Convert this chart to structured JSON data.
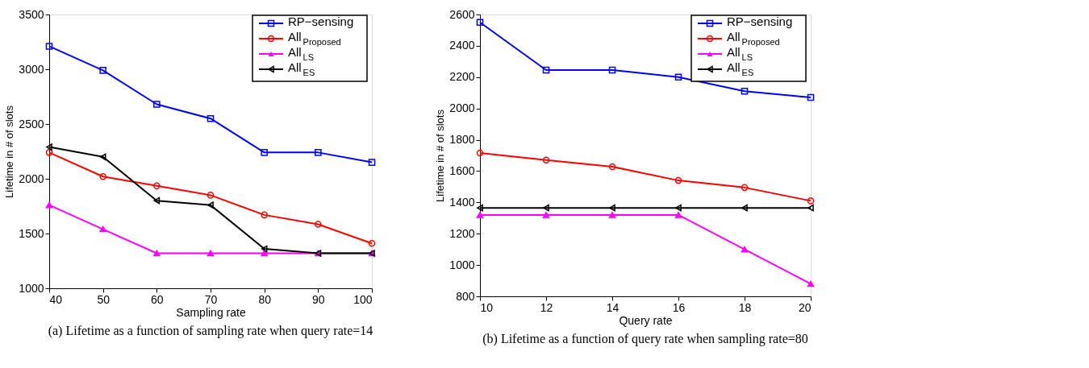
{
  "chart_data": [
    {
      "type": "line",
      "title": "(a) Lifetime as a function of sampling rate when query rate=14",
      "xlabel": "Sampling rate",
      "ylabel": "Lifetime in # of slots",
      "x": [
        40,
        50,
        60,
        70,
        80,
        90,
        100
      ],
      "xlim": [
        40,
        100
      ],
      "xticks": [
        40,
        50,
        60,
        70,
        80,
        90,
        100
      ],
      "ylim": [
        1000,
        3500
      ],
      "yticks": [
        1000,
        1500,
        2000,
        2500,
        3000,
        3500
      ],
      "legend": "top right",
      "grid": false,
      "line_style": "solid",
      "series": [
        {
          "name": "RP−sensing",
          "color": "#0000ff",
          "marker": "square",
          "values": [
            3210,
            2990,
            2680,
            2550,
            2240,
            2240,
            2150
          ]
        },
        {
          "name": "All$_{Proposed}$",
          "color": "#ff0000",
          "marker": "circle",
          "values": [
            2240,
            2020,
            1935,
            1850,
            1670,
            1585,
            1410
          ]
        },
        {
          "name": "All$_{LS}$",
          "color": "#ff00ff",
          "marker": "triangle",
          "values": [
            1760,
            1540,
            1320,
            1320,
            1320,
            1320,
            1320
          ]
        },
        {
          "name": "All$_{ES}$",
          "color": "#000000",
          "marker": "triangle-left",
          "values": [
            2290,
            2200,
            1800,
            1760,
            1360,
            1320,
            1320
          ]
        }
      ]
    },
    {
      "type": "line",
      "title": "(b) Lifetime as a function of query rate when sampling rate=80",
      "xlabel": "Query rate",
      "ylabel": "Lifetime in # of slots",
      "x": [
        10,
        12,
        14,
        16,
        18,
        20
      ],
      "xlim": [
        10,
        20
      ],
      "xticks": [
        10,
        12,
        14,
        16,
        18,
        20
      ],
      "ylim": [
        800,
        2600
      ],
      "yticks": [
        800,
        1000,
        1200,
        1400,
        1600,
        1800,
        2000,
        2200,
        2400,
        2600
      ],
      "legend": "top right",
      "grid": false,
      "line_style": "solid",
      "series": [
        {
          "name": "RP−sensing",
          "color": "#0000ff",
          "marker": "square",
          "values": [
            2550,
            2245,
            2245,
            2200,
            2110,
            2070
          ]
        },
        {
          "name": "All$_{Proposed}$",
          "color": "#ff0000",
          "marker": "circle",
          "values": [
            1715,
            1670,
            1628,
            1540,
            1495,
            1410
          ]
        },
        {
          "name": "All$_{LS}$",
          "color": "#ff00ff",
          "marker": "triangle",
          "values": [
            1320,
            1320,
            1320,
            1320,
            1100,
            880
          ]
        },
        {
          "name": "All$_{ES}$",
          "color": "#000000",
          "marker": "triangle-left",
          "values": [
            1365,
            1365,
            1365,
            1365,
            1365,
            1365
          ]
        }
      ]
    }
  ]
}
